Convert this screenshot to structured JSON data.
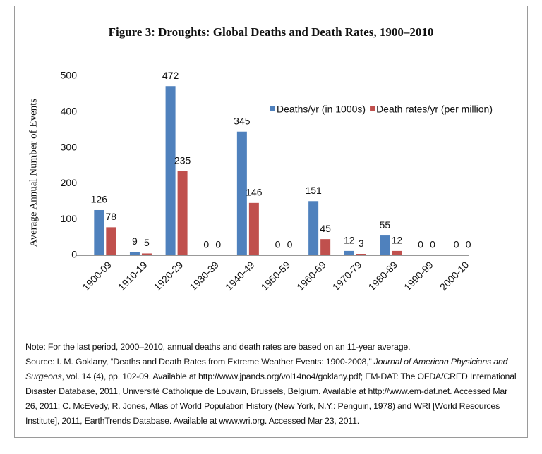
{
  "chart_data": {
    "type": "bar",
    "title": "Figure 3: Droughts: Global Deaths and Death Rates, 1900–2010",
    "y_label": "Average Annual Number of Events",
    "categories": [
      "1900-09",
      "1910-19",
      "1920-29",
      "1930-39",
      "1940-49",
      "1950-59",
      "1960-69",
      "1970-79",
      "1980-89",
      "1990-99",
      "2000-10"
    ],
    "series": [
      {
        "name": "Deaths/yr (in 1000s)",
        "color": "#4f81bd",
        "values": [
          126,
          9,
          472,
          0,
          345,
          0,
          151,
          12,
          55,
          0,
          0
        ]
      },
      {
        "name": "Death rates/yr (per million)",
        "color": "#c0504d",
        "values": [
          78,
          5,
          235,
          0,
          146,
          0,
          45,
          3,
          12,
          0,
          0
        ]
      }
    ],
    "ylim": [
      0,
      500
    ],
    "yticks": [
      0,
      100,
      200,
      300,
      400,
      500
    ],
    "grid": false
  },
  "notes": {
    "note": "Note: For the last period, 2000–2010, annual deaths and death rates are based on an 11-year average.",
    "source": [
      "Source: I. M. Goklany, “Deaths and Death Rates from Extreme Weather Events: 1900-2008,” ",
      "Journal of American Physicians and Surgeons",
      ", vol. 14 (4), pp. 102-09. Available at http://www.jpands.org/vol14no4/goklany.pdf; EM-DAT: The OFDA/CRED International Disaster Database, 2011, Université Catholique de Louvain, Brussels, Belgium. Available at http://www.em-dat.net. Accessed Mar 26, 2011; C. McEvedy, R. Jones, Atlas of World Population History (New York, N.Y.: Penguin, 1978) and WRI [World Resources Institute], 2011, EarthTrends Database. Available at www.wri.org. Accessed Mar 23, 2011."
    ]
  }
}
